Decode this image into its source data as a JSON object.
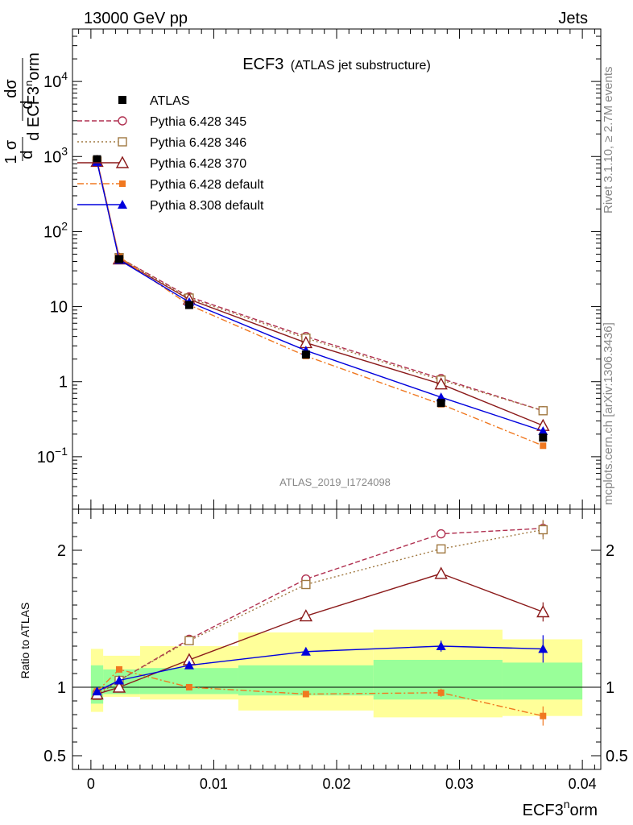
{
  "header": {
    "left": "13000 GeV pp",
    "right": "Jets"
  },
  "title": {
    "main": "ECF3",
    "sub": "(ATLAS jet substructure)"
  },
  "side_labels": {
    "rivet": "Rivet 3.1.10, ≥ 2.7M events",
    "mcplots": "mcplots.cern.ch [arXiv:1306.3436]"
  },
  "analysis_id": "ATLAS_2019_I1724098",
  "chart_data": [
    {
      "type": "line",
      "panel": "main",
      "yscale": "log",
      "ylim": [
        0.02,
        50000
      ],
      "xlim": [
        -0.0015,
        0.0415
      ],
      "ylabel": {
        "frac_num": "1",
        "frac_den": "σ",
        "d_num": "d",
        "d_den": "d ECF3",
        "sup": "n",
        "tail": "orm",
        "sigma_num": "dσ"
      },
      "xlabel": {
        "base": "ECF3",
        "sup": "n",
        "tail": "orm"
      },
      "y_ticks": [
        {
          "v": 0.1,
          "label": "10",
          "sup": "−1"
        },
        {
          "v": 1,
          "label": "1",
          "sup": ""
        },
        {
          "v": 10,
          "label": "10",
          "sup": ""
        },
        {
          "v": 100,
          "label": "10",
          "sup": "2"
        },
        {
          "v": 1000,
          "label": "10",
          "sup": "3"
        },
        {
          "v": 10000,
          "label": "10",
          "sup": "4"
        }
      ],
      "legend_position": "top-left",
      "data": {
        "name": "ATLAS",
        "x": [
          0.0005,
          0.0023,
          0.008,
          0.0175,
          0.0285,
          0.0368
        ],
        "y": [
          920,
          43,
          10.5,
          2.3,
          0.52,
          0.18
        ]
      },
      "series": [
        {
          "name": "Pythia 6.428 345",
          "color": "#b03050",
          "dash": "6,3",
          "marker": "circle-open",
          "x": [
            0.0005,
            0.0023,
            0.008,
            0.0175,
            0.0285,
            0.0368
          ],
          "y": [
            880,
            45,
            13.5,
            4.0,
            1.1,
            0.41
          ]
        },
        {
          "name": "Pythia 6.428 346",
          "color": "#a07840",
          "dash": "2,3",
          "marker": "square-open",
          "x": [
            0.0005,
            0.0023,
            0.008,
            0.0175,
            0.0285,
            0.0368
          ],
          "y": [
            870,
            45,
            13.0,
            3.8,
            1.05,
            0.41
          ]
        },
        {
          "name": "Pythia 6.428 370",
          "color": "#8b1a1a",
          "dash": "",
          "marker": "triangle-open",
          "x": [
            0.0005,
            0.0023,
            0.008,
            0.0175,
            0.0285,
            0.0368
          ],
          "y": [
            860,
            43,
            12.5,
            3.3,
            0.93,
            0.26
          ]
        },
        {
          "name": "Pythia 6.428 default",
          "color": "#f07820",
          "dash": "8,3,2,3",
          "marker": "square-filled",
          "x": [
            0.0005,
            0.0023,
            0.008,
            0.0175,
            0.0285,
            0.0368
          ],
          "y": [
            900,
            46,
            10.5,
            2.2,
            0.5,
            0.14
          ]
        },
        {
          "name": "Pythia 8.308 default",
          "color": "#0000dd",
          "dash": "",
          "marker": "triangle-filled",
          "x": [
            0.0005,
            0.0023,
            0.008,
            0.0175,
            0.0285,
            0.0368
          ],
          "y": [
            850,
            42,
            11.5,
            2.6,
            0.62,
            0.22
          ]
        }
      ]
    },
    {
      "type": "line",
      "panel": "ratio",
      "ylabel": "Ratio to ATLAS",
      "ylim": [
        0.4,
        2.3
      ],
      "xlim": [
        -0.0015,
        0.0415
      ],
      "y_ticks": [
        {
          "v": 0.5,
          "label": "0.5"
        },
        {
          "v": 1,
          "label": "1"
        },
        {
          "v": 2,
          "label": "2"
        }
      ],
      "x_ticks": [
        {
          "v": 0,
          "label": "0"
        },
        {
          "v": 0.01,
          "label": "0.01"
        },
        {
          "v": 0.02,
          "label": "0.02"
        },
        {
          "v": 0.03,
          "label": "0.03"
        },
        {
          "v": 0.04,
          "label": "0.04"
        }
      ],
      "bands": {
        "edges": [
          0.0,
          0.001,
          0.004,
          0.012,
          0.023,
          0.0335,
          0.04
        ],
        "yellow": [
          [
            0.82,
            1.28
          ],
          [
            0.93,
            1.23
          ],
          [
            0.91,
            1.3
          ],
          [
            0.83,
            1.4
          ],
          [
            0.78,
            1.42
          ],
          [
            0.79,
            1.35
          ]
        ],
        "green": [
          [
            0.88,
            1.16
          ],
          [
            0.95,
            1.13
          ],
          [
            0.95,
            1.14
          ],
          [
            0.94,
            1.16
          ],
          [
            0.91,
            1.2
          ],
          [
            0.91,
            1.18
          ]
        ]
      },
      "series": [
        {
          "name": "Pythia 6.428 345",
          "color": "#b03050",
          "dash": "6,3",
          "marker": "circle-open",
          "x": [
            0.0005,
            0.0023,
            0.008,
            0.0175,
            0.0285,
            0.0368
          ],
          "y": [
            0.96,
            1.05,
            1.35,
            1.79,
            2.12,
            2.16
          ],
          "err": [
            0,
            0,
            0,
            0,
            0.03,
            0.06
          ]
        },
        {
          "name": "Pythia 6.428 346",
          "color": "#a07840",
          "dash": "2,3",
          "marker": "square-open",
          "x": [
            0.0005,
            0.0023,
            0.008,
            0.0175,
            0.0285,
            0.0368
          ],
          "y": [
            0.94,
            1.05,
            1.34,
            1.75,
            2.01,
            2.15
          ],
          "err": [
            0,
            0,
            0,
            0,
            0.03,
            0.07
          ]
        },
        {
          "name": "Pythia 6.428 370",
          "color": "#8b1a1a",
          "dash": "",
          "marker": "triangle-open",
          "x": [
            0.0005,
            0.0023,
            0.008,
            0.0175,
            0.0285,
            0.0368
          ],
          "y": [
            0.95,
            1.0,
            1.2,
            1.52,
            1.83,
            1.55
          ],
          "err": [
            0,
            0,
            0,
            0,
            0.03,
            0.07
          ]
        },
        {
          "name": "Pythia 6.428 default",
          "color": "#f07820",
          "dash": "8,3,2,3",
          "marker": "square-filled",
          "x": [
            0.0005,
            0.0023,
            0.008,
            0.0175,
            0.0285,
            0.0368
          ],
          "y": [
            0.97,
            1.13,
            1.0,
            0.95,
            0.96,
            0.79
          ],
          "err": [
            0,
            0,
            0,
            0,
            0.03,
            0.07
          ]
        },
        {
          "name": "Pythia 8.308 default",
          "color": "#0000dd",
          "dash": "",
          "marker": "triangle-filled",
          "x": [
            0.0005,
            0.0023,
            0.008,
            0.0175,
            0.0285,
            0.0368
          ],
          "y": [
            0.97,
            1.05,
            1.16,
            1.26,
            1.3,
            1.28
          ],
          "err": [
            0,
            0,
            0,
            0,
            0.04,
            0.1
          ]
        }
      ]
    }
  ]
}
